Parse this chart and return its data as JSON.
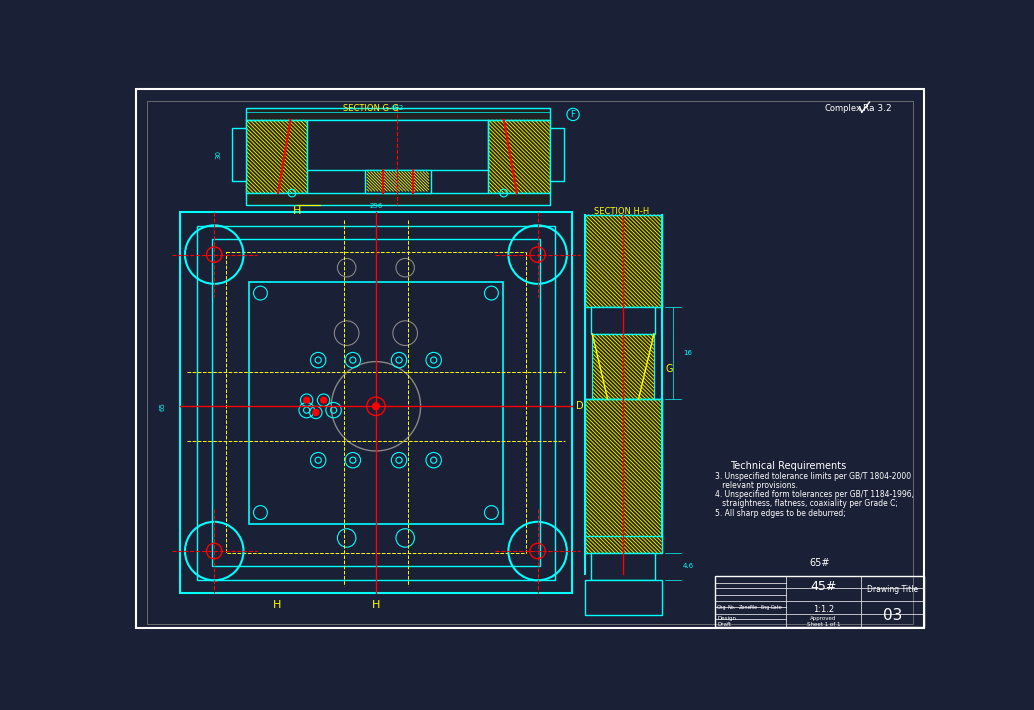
{
  "bg_color": "#1a2035",
  "line_color_cyan": "#00ffff",
  "line_color_yellow": "#ffff00",
  "line_color_red": "#ff0000",
  "line_color_white": "#ffffff",
  "line_color_gray": "#888888",
  "section_cg_label": "SECTION G-G",
  "section_hh_label": "SECTION H-H",
  "part_number": "65#",
  "drawing_number": "03",
  "scale": "1:1.2",
  "material": "45#",
  "title_text_ascii": "Technical Requirements",
  "tech_req_ascii": [
    "3. Unspecified tolerance limits per GB/T 1804-2000",
    "   relevant provisions.",
    "4. Unspecified form tolerances per GB/T 1184-1996,",
    "   straightness, flatness, coaxiality per Grade C;",
    "5. All sharp edges to be deburred;"
  ]
}
